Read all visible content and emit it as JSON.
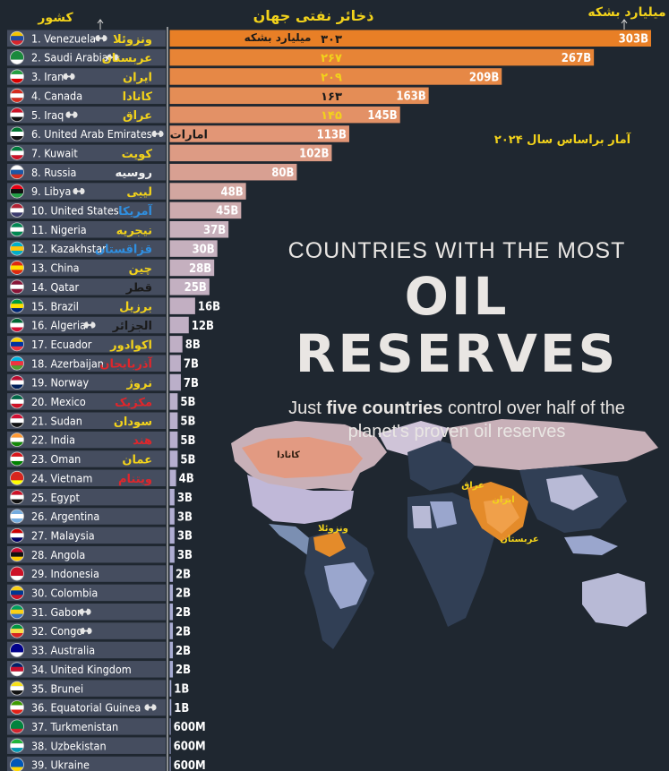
{
  "header": {
    "country_label": "کشور",
    "title": "ذخائر نفتی جهان",
    "unit_label": "میلیارد بشکه",
    "year_note": "آمار براساس سال ۲۰۲۴"
  },
  "headline": {
    "line1": "COUNTRIES WITH THE MOST",
    "line2": "OIL RESERVES",
    "subtitle_pre": "Just ",
    "subtitle_bold": "five countries",
    "subtitle_post": " control over half of the planet's proven oil reserves"
  },
  "map_labels": [
    {
      "text": "کانادا",
      "color": "#2b1a0d"
    },
    {
      "text": "ونزوئلا",
      "color": "#f2d21b"
    },
    {
      "text": "عراق",
      "color": "#f2d21b"
    },
    {
      "text": "ایران",
      "color": "#f2d21b"
    },
    {
      "text": "عربستان",
      "color": "#f2d21b"
    }
  ],
  "chart_data": {
    "type": "bar",
    "orientation": "horizontal",
    "unit": "billion barrels",
    "categories": [
      "1. Venezuela",
      "2. Saudi Arabia",
      "3. Iran",
      "4. Canada",
      "5. Iraq",
      "6. United Arab Emirates",
      "7. Kuwait",
      "8. Russia",
      "9. Libya",
      "10. United States",
      "11. Nigeria",
      "12. Kazakhstan",
      "13. China",
      "14. Qatar",
      "15. Brazil",
      "16. Algeria",
      "17. Ecuador",
      "18. Azerbaijan",
      "19. Norway",
      "20. Mexico",
      "21. Sudan",
      "22. India",
      "23. Oman",
      "24. Vietnam",
      "25. Egypt",
      "26. Argentina",
      "27. Malaysia",
      "28. Angola",
      "29. Indonesia",
      "30. Colombia",
      "31. Gabon",
      "32. Congo",
      "33. Australia",
      "34. United Kingdom",
      "35. Brunei",
      "36. Equatorial Guinea",
      "37. Turkmenistan",
      "38. Uzbekistan",
      "39. Ukraine"
    ],
    "values": [
      303,
      267,
      209,
      163,
      145,
      113,
      102,
      80,
      48,
      45,
      37,
      30,
      28,
      25,
      16,
      12,
      8,
      7,
      7,
      5,
      5,
      5,
      5,
      4,
      3,
      3,
      3,
      3,
      2,
      2,
      2,
      2,
      2,
      2,
      1,
      1,
      0.6,
      0.6,
      0.6
    ],
    "value_labels": [
      "303B",
      "267B",
      "209B",
      "163B",
      "145B",
      "113B",
      "102B",
      "80B",
      "48B",
      "45B",
      "37B",
      "30B",
      "28B",
      "25B",
      "16B",
      "12B",
      "8B",
      "7B",
      "7B",
      "5B",
      "5B",
      "5B",
      "5B",
      "4B",
      "3B",
      "3B",
      "3B",
      "3B",
      "2B",
      "2B",
      "2B",
      "2B",
      "2B",
      "2B",
      "1B",
      "1B",
      "600M",
      "600M",
      "600M"
    ],
    "persian_names": [
      "ونزوئلا",
      "عربستان",
      "ایران",
      "کانادا",
      "عراق",
      "امارات",
      "کویت",
      "روسیه",
      "لیبی",
      "آمریکا",
      "نیجریه",
      "قزاقستان",
      "چین",
      "قطر",
      "برزیل",
      "الجزائر",
      "اکوادور",
      "آذربایجان",
      "نروژ",
      "مکزیک",
      "سودان",
      "هند",
      "عمان",
      "ویتنام",
      "",
      "",
      "",
      "",
      "",
      "",
      "",
      "",
      "",
      "",
      "",
      "",
      "",
      "",
      ""
    ],
    "persian_colors": [
      "#f2d21b",
      "#f2d21b",
      "#f2d21b",
      "#f2d21b",
      "#f2d21b",
      "#1a1a1a",
      "#f2d21b",
      "#f2f2f2",
      "#f2d21b",
      "#2f8fe0",
      "#f2d21b",
      "#2f8fe0",
      "#f2d21b",
      "#1a1a1a",
      "#f2d21b",
      "#1a1a1a",
      "#f2d21b",
      "#e0262b",
      "#f2d21b",
      "#e0262b",
      "#f2d21b",
      "#e0262b",
      "#f2d21b",
      "#e0262b",
      "",
      "",
      "",
      "",
      "",
      "",
      "",
      "",
      "",
      "",
      "",
      "",
      "",
      "",
      ""
    ],
    "persian_values": [
      "۳۰۳",
      "۲۶۷",
      "۲۰۹",
      "۱۶۳",
      "۱۴۵",
      "",
      "",
      "",
      "",
      "",
      "",
      "",
      "",
      "",
      "",
      "",
      "",
      "",
      "",
      "",
      "",
      "",
      "",
      "",
      "",
      "",
      "",
      "",
      "",
      "",
      "",
      "",
      "",
      "",
      "",
      "",
      "",
      "",
      ""
    ],
    "persian_value_colors": [
      "#1a1a1a",
      "#f2d21b",
      "#f2d21b",
      "#1a1a1a",
      "#f2d21b",
      "",
      "",
      "",
      "",
      "",
      "",
      "",
      "",
      "",
      "",
      "",
      "",
      "",
      "",
      "",
      "",
      "",
      "",
      "",
      "",
      "",
      "",
      "",
      "",
      "",
      "",
      "",
      "",
      "",
      "",
      "",
      "",
      "",
      ""
    ],
    "opec_members": [
      "1. Venezuela",
      "2. Saudi Arabia",
      "3. Iran",
      "5. Iraq",
      "6. United Arab Emirates",
      "9. Libya",
      "16. Algeria",
      "31. Gabon",
      "32. Congo",
      "36. Equatorial Guinea"
    ],
    "flag_colors": [
      [
        "#f4c400",
        "#1f4aa0",
        "#d8252b"
      ],
      [
        "#1a8a3c",
        "#1a8a3c",
        "#ffffff"
      ],
      [
        "#239f40",
        "#ffffff",
        "#da0000"
      ],
      [
        "#d52b1e",
        "#ffffff",
        "#d52b1e"
      ],
      [
        "#ce1126",
        "#ffffff",
        "#111111"
      ],
      [
        "#00732f",
        "#ffffff",
        "#111111"
      ],
      [
        "#007a3d",
        "#ffffff",
        "#ce1126"
      ],
      [
        "#ffffff",
        "#1c57a5",
        "#d52b1e"
      ],
      [
        "#e70013",
        "#111111",
        "#239e46"
      ],
      [
        "#b22234",
        "#ffffff",
        "#3c3b6e"
      ],
      [
        "#008751",
        "#ffffff",
        "#008751"
      ],
      [
        "#00afca",
        "#fec50c",
        "#00afca"
      ],
      [
        "#de2910",
        "#ffde00",
        "#de2910"
      ],
      [
        "#8a1538",
        "#ffffff",
        "#8a1538"
      ],
      [
        "#009c3b",
        "#ffdf00",
        "#002776"
      ],
      [
        "#006633",
        "#ffffff",
        "#d21034"
      ],
      [
        "#ffd100",
        "#0033a0",
        "#ef3340"
      ],
      [
        "#00b5e2",
        "#ef3340",
        "#509e2f"
      ],
      [
        "#ba0c2f",
        "#ffffff",
        "#00205b"
      ],
      [
        "#006847",
        "#ffffff",
        "#ce1126"
      ],
      [
        "#d21034",
        "#ffffff",
        "#111111"
      ],
      [
        "#ff9933",
        "#ffffff",
        "#138808"
      ],
      [
        "#db161b",
        "#ffffff",
        "#008000"
      ],
      [
        "#da251d",
        "#da251d",
        "#ffff00"
      ],
      [
        "#ce1126",
        "#ffffff",
        "#111111"
      ],
      [
        "#74acdf",
        "#ffffff",
        "#74acdf"
      ],
      [
        "#cc0001",
        "#ffffff",
        "#010066"
      ],
      [
        "#cc092f",
        "#111111",
        "#ffcb00"
      ],
      [
        "#ce1126",
        "#ce1126",
        "#ffffff"
      ],
      [
        "#fcd116",
        "#003893",
        "#ce1126"
      ],
      [
        "#009e60",
        "#fcd116",
        "#3a75c4"
      ],
      [
        "#009543",
        "#fbde4a",
        "#dc241f"
      ],
      [
        "#00008b",
        "#00008b",
        "#ffffff"
      ],
      [
        "#012169",
        "#c8102e",
        "#ffffff"
      ],
      [
        "#f7e017",
        "#ffffff",
        "#111111"
      ],
      [
        "#3e9a00",
        "#ffffff",
        "#e32118"
      ],
      [
        "#00843d",
        "#00843d",
        "#d22630"
      ],
      [
        "#1eb53a",
        "#ffffff",
        "#0099b5"
      ],
      [
        "#0057b7",
        "#0057b7",
        "#ffd700"
      ]
    ]
  }
}
